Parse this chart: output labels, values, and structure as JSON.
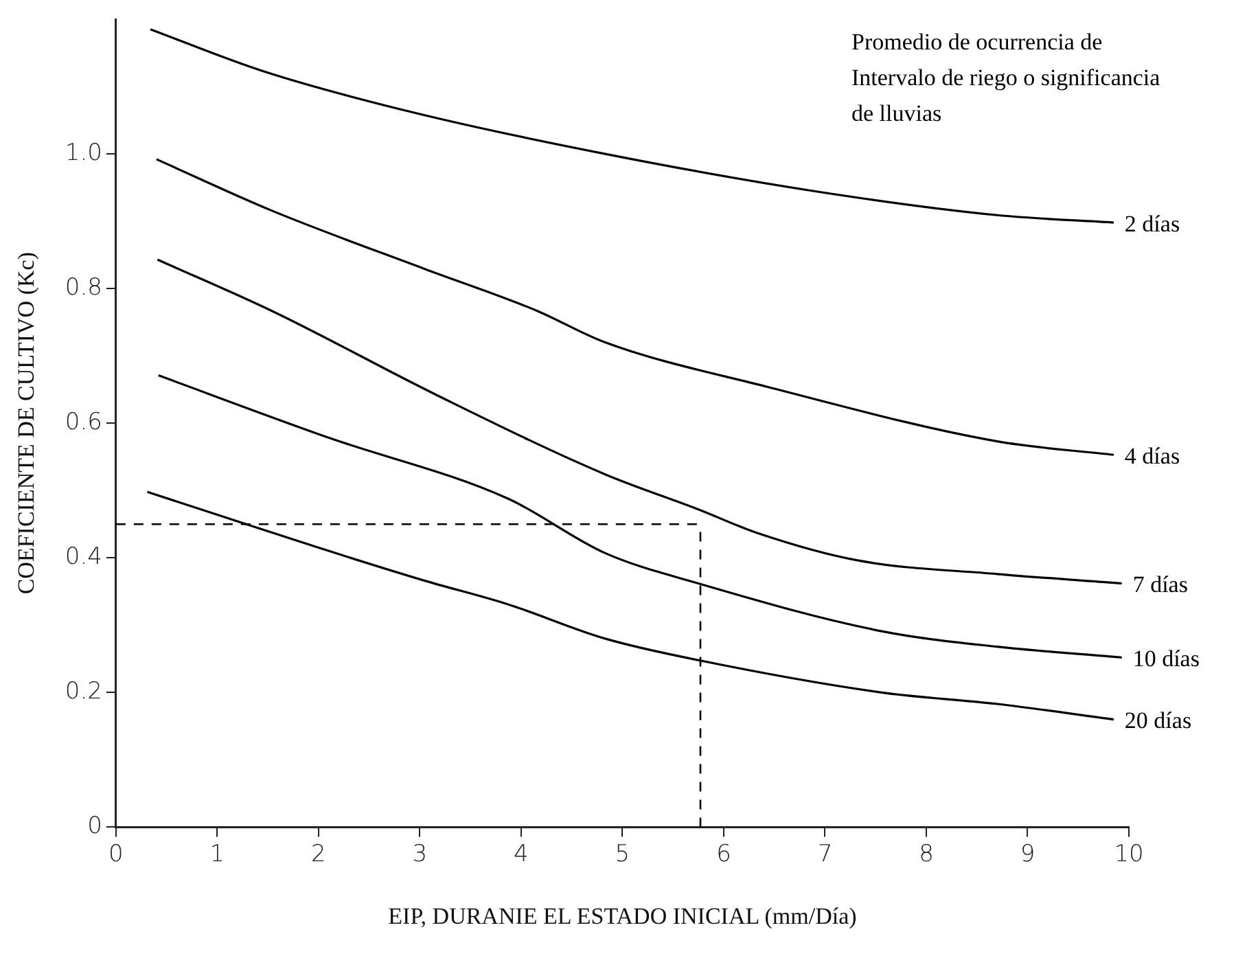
{
  "chart_data": {
    "type": "line",
    "xlabel": "EIP, DURANIE EL ESTADO INICIAL (mm/Día)",
    "ylabel": "COEFICIENTE DE CULTIVO (Kc)",
    "annotations": [
      "Promedio de ocurrencia de Intervalo de riego o significancia de lluvias"
    ],
    "xlim": [
      0,
      10
    ],
    "xticks": [
      0,
      1,
      2,
      3,
      4,
      5,
      6,
      7,
      8,
      9,
      10
    ],
    "ylim": [
      0,
      1.2
    ],
    "yticks": [
      0,
      {
        "value": 0.2,
        "label": "0.2"
      },
      {
        "value": 0.4,
        "label": "0.4"
      },
      {
        "value": 0.6,
        "label": "0.6"
      },
      {
        "value": 0.8,
        "label": "0.8"
      },
      {
        "value": 1,
        "label": "1.0"
      }
    ],
    "grid": false,
    "legend": false,
    "marker": "none",
    "line_style": "solid",
    "series": [
      {
        "name": "2 días",
        "color": "#000000",
        "x": [
          0.34,
          1.45,
          2.95,
          4.83,
          6.88,
          8.7,
          9.85
        ],
        "values": [
          1.185,
          1.123,
          1.061,
          1.0,
          0.945,
          0.909,
          0.898
        ]
      },
      {
        "name": "4 días",
        "color": "#000000",
        "x": [
          0.4,
          1.55,
          3.05,
          4.14,
          4.83,
          6.43,
          8.7,
          9.85
        ],
        "values": [
          0.992,
          0.915,
          0.829,
          0.768,
          0.72,
          0.654,
          0.573,
          0.553
        ]
      },
      {
        "name": "7 días",
        "color": "#000000",
        "x": [
          0.41,
          1.55,
          3.19,
          4.83,
          5.75,
          6.33,
          7.33,
          8.7,
          9.93
        ],
        "values": [
          0.843,
          0.766,
          0.64,
          0.524,
          0.472,
          0.437,
          0.396,
          0.376,
          0.362
        ]
      },
      {
        "name": "10 días",
        "color": "#000000",
        "x": [
          0.42,
          2.09,
          3.87,
          4.83,
          5.75,
          7.56,
          8.7,
          9.93
        ],
        "values": [
          0.671,
          0.579,
          0.488,
          0.407,
          0.362,
          0.291,
          0.268,
          0.252
        ]
      },
      {
        "name": "20 días",
        "color": "#000000",
        "x": [
          0.31,
          1.96,
          3.05,
          3.87,
          4.83,
          5.75,
          7.56,
          8.7,
          9.85
        ],
        "values": [
          0.498,
          0.417,
          0.366,
          0.331,
          0.28,
          0.248,
          0.2,
          0.183,
          0.16
        ]
      }
    ],
    "ref_lines": [
      {
        "axis": "y",
        "value": 0.45,
        "line_style": "dashed",
        "color": "#000000"
      },
      {
        "axis": "x",
        "value": 5.77,
        "line_style": "dashed",
        "color": "#000000"
      }
    ]
  }
}
